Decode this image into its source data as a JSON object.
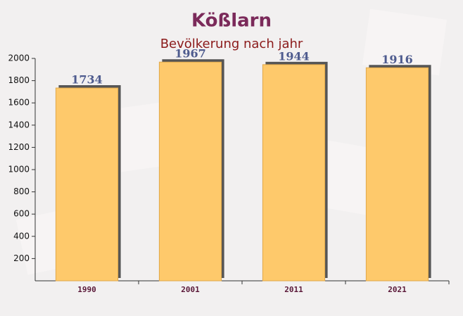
{
  "chart_data": {
    "type": "bar",
    "title": "Kößlarn",
    "subtitle": "Bevölkerung nach jahr",
    "categories": [
      "1990",
      "2001",
      "2011",
      "2021"
    ],
    "values": [
      1734,
      1967,
      1944,
      1916
    ],
    "color": "#fec96b",
    "ylim": [
      0,
      2000
    ],
    "yticks": [
      200,
      400,
      600,
      800,
      1000,
      1200,
      1400,
      1600,
      1800,
      2000
    ],
    "grid": false
  }
}
